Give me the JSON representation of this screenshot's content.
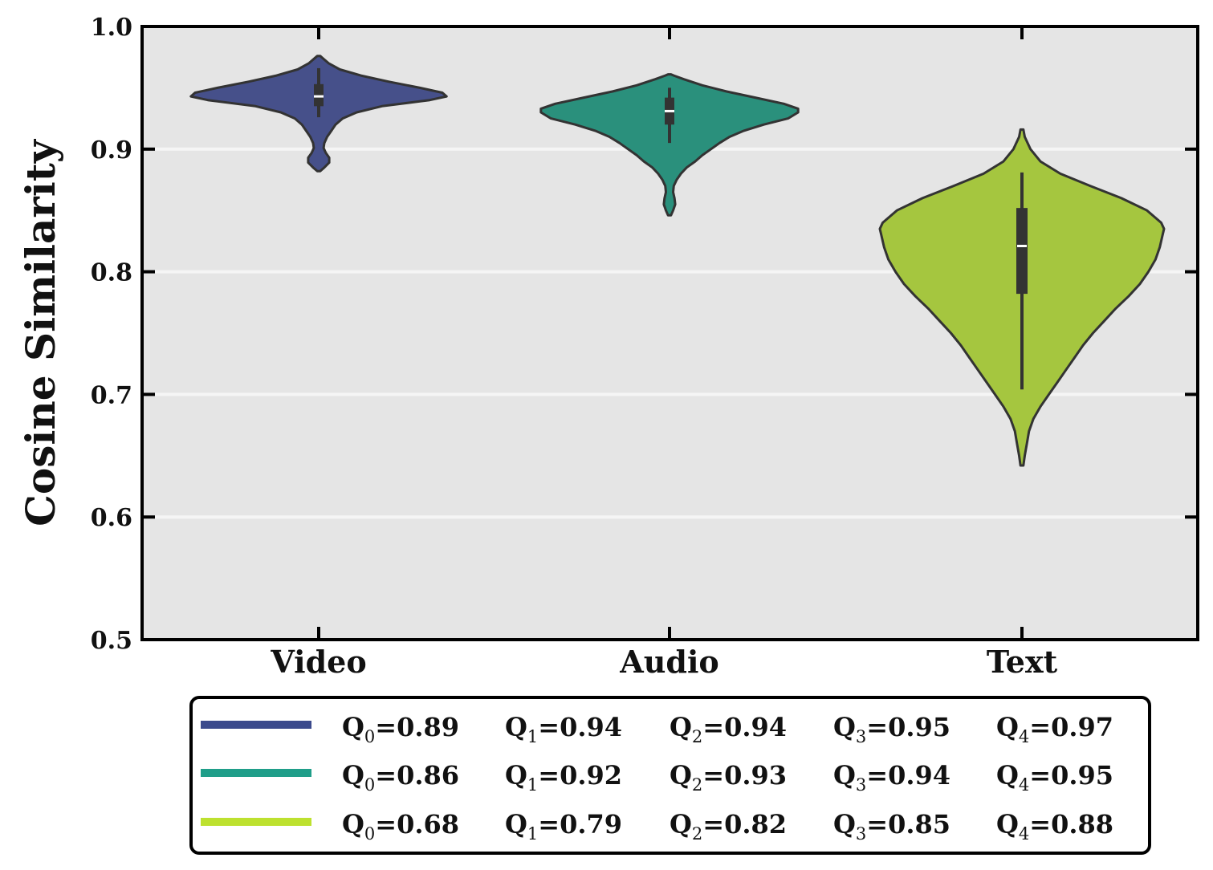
{
  "chart_data": {
    "type": "violin",
    "ylabel": "Cosine Similarity",
    "xlabel": "",
    "ylim": [
      0.5,
      1.0
    ],
    "yticks": [
      0.5,
      0.6,
      0.7,
      0.8,
      0.9,
      1.0
    ],
    "ytick_labels": [
      "0.5",
      "0.6",
      "0.7",
      "0.8",
      "0.9",
      "1.0"
    ],
    "grid": "horizontal",
    "background": "#e5e5e5",
    "legend_position": "below",
    "categories": [
      "Video",
      "Audio",
      "Text"
    ],
    "series": [
      {
        "category": "Video",
        "color": "#46508a",
        "legend_color": "#3b4a8c",
        "min": 0.89,
        "q1": 0.94,
        "median": 0.94,
        "q3": 0.95,
        "max": 0.97,
        "median_marker": 0.943,
        "box": [
          0.935,
          0.953
        ],
        "whisker": [
          0.926,
          0.966
        ],
        "density": [
          [
            0.882,
            0.01
          ],
          [
            0.885,
            0.04
          ],
          [
            0.889,
            0.075
          ],
          [
            0.893,
            0.075
          ],
          [
            0.897,
            0.05
          ],
          [
            0.901,
            0.035
          ],
          [
            0.905,
            0.04
          ],
          [
            0.91,
            0.06
          ],
          [
            0.915,
            0.09
          ],
          [
            0.92,
            0.12
          ],
          [
            0.925,
            0.17
          ],
          [
            0.93,
            0.27
          ],
          [
            0.935,
            0.45
          ],
          [
            0.94,
            0.79
          ],
          [
            0.943,
            0.91
          ],
          [
            0.946,
            0.88
          ],
          [
            0.95,
            0.72
          ],
          [
            0.955,
            0.5
          ],
          [
            0.96,
            0.3
          ],
          [
            0.965,
            0.15
          ],
          [
            0.97,
            0.07
          ],
          [
            0.974,
            0.03
          ],
          [
            0.976,
            0.01
          ]
        ],
        "legend_labels": [
          "0.89",
          "0.94",
          "0.94",
          "0.95",
          "0.97"
        ]
      },
      {
        "category": "Audio",
        "color": "#2a907c",
        "legend_color": "#1f9e89",
        "min": 0.86,
        "q1": 0.92,
        "median": 0.93,
        "q3": 0.94,
        "max": 0.95,
        "median_marker": 0.931,
        "box": [
          0.92,
          0.942
        ],
        "whisker": [
          0.905,
          0.95
        ],
        "density": [
          [
            0.846,
            0.01
          ],
          [
            0.85,
            0.025
          ],
          [
            0.855,
            0.04
          ],
          [
            0.86,
            0.035
          ],
          [
            0.865,
            0.025
          ],
          [
            0.87,
            0.03
          ],
          [
            0.875,
            0.05
          ],
          [
            0.88,
            0.08
          ],
          [
            0.885,
            0.12
          ],
          [
            0.89,
            0.18
          ],
          [
            0.895,
            0.23
          ],
          [
            0.9,
            0.29
          ],
          [
            0.905,
            0.35
          ],
          [
            0.91,
            0.42
          ],
          [
            0.915,
            0.52
          ],
          [
            0.92,
            0.66
          ],
          [
            0.925,
            0.83
          ],
          [
            0.93,
            0.9
          ],
          [
            0.933,
            0.9
          ],
          [
            0.937,
            0.8
          ],
          [
            0.942,
            0.6
          ],
          [
            0.947,
            0.4
          ],
          [
            0.952,
            0.23
          ],
          [
            0.957,
            0.1
          ],
          [
            0.96,
            0.03
          ],
          [
            0.961,
            0.01
          ]
        ],
        "legend_labels": [
          "0.86",
          "0.92",
          "0.93",
          "0.94",
          "0.95"
        ]
      },
      {
        "category": "Text",
        "color": "#a5c63f",
        "legend_color": "#bde12f",
        "min": 0.68,
        "q1": 0.79,
        "median": 0.82,
        "q3": 0.85,
        "max": 0.88,
        "median_marker": 0.821,
        "box": [
          0.782,
          0.852
        ],
        "whisker": [
          0.704,
          0.881
        ],
        "density": [
          [
            0.642,
            0.01
          ],
          [
            0.65,
            0.02
          ],
          [
            0.66,
            0.035
          ],
          [
            0.67,
            0.05
          ],
          [
            0.68,
            0.08
          ],
          [
            0.69,
            0.13
          ],
          [
            0.7,
            0.19
          ],
          [
            0.71,
            0.25
          ],
          [
            0.72,
            0.31
          ],
          [
            0.73,
            0.37
          ],
          [
            0.74,
            0.43
          ],
          [
            0.75,
            0.5
          ],
          [
            0.76,
            0.58
          ],
          [
            0.77,
            0.66
          ],
          [
            0.78,
            0.75
          ],
          [
            0.79,
            0.83
          ],
          [
            0.8,
            0.89
          ],
          [
            0.81,
            0.94
          ],
          [
            0.82,
            0.97
          ],
          [
            0.83,
            0.99
          ],
          [
            0.835,
            1.0
          ],
          [
            0.84,
            0.98
          ],
          [
            0.85,
            0.88
          ],
          [
            0.86,
            0.7
          ],
          [
            0.87,
            0.48
          ],
          [
            0.88,
            0.27
          ],
          [
            0.89,
            0.13
          ],
          [
            0.9,
            0.06
          ],
          [
            0.91,
            0.02
          ],
          [
            0.916,
            0.01
          ]
        ],
        "legend_labels": [
          "0.68",
          "0.79",
          "0.82",
          "0.85",
          "0.88"
        ]
      }
    ]
  }
}
